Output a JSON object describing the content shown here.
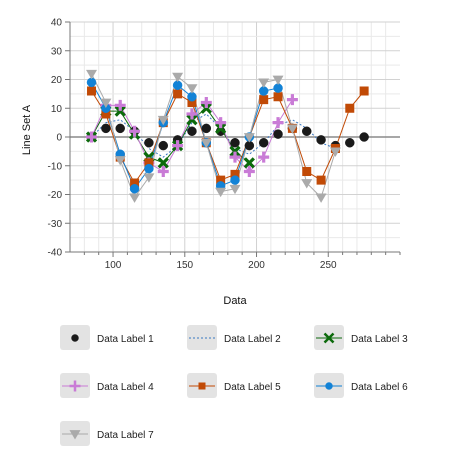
{
  "chart_data": {
    "type": "line",
    "title": "",
    "xlabel": "Data",
    "ylabel": "Line Set A",
    "xlim": [
      70,
      300
    ],
    "ylim": [
      -40,
      40
    ],
    "xticks": [
      100,
      150,
      200,
      250
    ],
    "yticks": [
      -40,
      -30,
      -20,
      -10,
      0,
      10,
      20,
      30,
      40
    ],
    "grid": true,
    "legend_position": "bottom",
    "series": [
      {
        "name": "Data Label 1",
        "color": "#1a1a1a",
        "marker": "circle",
        "line": "none",
        "x": [
          85,
          95,
          105,
          115,
          125,
          135,
          145,
          155,
          165,
          175,
          185,
          195,
          205,
          215,
          225,
          235,
          245,
          255,
          265,
          275
        ],
        "y": [
          0,
          3,
          3,
          2,
          -2,
          -3,
          -1,
          2,
          3,
          2,
          -2,
          -3,
          -2,
          1,
          3,
          2,
          -1,
          -3,
          -2,
          0
        ]
      },
      {
        "name": "Data Label 2",
        "color": "#3a78c2",
        "marker": "none",
        "line": "dotted",
        "x": [
          85,
          95,
          105,
          115,
          125,
          135,
          145,
          155,
          165,
          175,
          185,
          195,
          205,
          215,
          225,
          235,
          245,
          255
        ],
        "y": [
          0,
          5,
          6,
          2,
          -4,
          -7,
          -3,
          5,
          8,
          3,
          -4,
          -6,
          -2,
          4,
          6,
          3,
          -2,
          -4
        ]
      },
      {
        "name": "Data Label 3",
        "color": "#0c6a0c",
        "marker": "x",
        "line": "solid",
        "x": [
          85,
          95,
          105,
          115,
          125,
          135,
          145,
          155,
          165,
          175,
          185,
          195
        ],
        "y": [
          0,
          9,
          9,
          1,
          -7,
          -9,
          -3,
          6,
          10,
          3,
          -5,
          -9
        ]
      },
      {
        "name": "Data Label 4",
        "color": "#c97bd6",
        "marker": "plus",
        "line": "solid",
        "x": [
          85,
          95,
          105,
          115,
          125,
          135,
          145,
          155,
          165,
          175,
          185,
          195,
          205,
          215,
          225
        ],
        "y": [
          0,
          11,
          11,
          2,
          -9,
          -12,
          -3,
          8,
          12,
          5,
          -7,
          -12,
          -7,
          5,
          13
        ]
      },
      {
        "name": "Data Label 5",
        "color": "#c14a06",
        "marker": "square",
        "line": "solid",
        "x": [
          85,
          95,
          105,
          115,
          125,
          135,
          145,
          155,
          165,
          175,
          185,
          205,
          215,
          225,
          235,
          245,
          255,
          265,
          275
        ],
        "y": [
          16,
          8,
          -7,
          -16,
          -9,
          5,
          15,
          12,
          -2,
          -15,
          -13,
          13,
          14,
          3,
          -12,
          -15,
          -4,
          10,
          16
        ]
      },
      {
        "name": "Data Label 6",
        "color": "#1282d6",
        "marker": "circle",
        "line": "solid",
        "x": [
          85,
          95,
          105,
          115,
          125,
          135,
          145,
          155,
          165,
          175,
          185,
          195,
          205,
          215
        ],
        "y": [
          19,
          10,
          -6,
          -18,
          -11,
          5,
          18,
          14,
          -2,
          -17,
          -15,
          0,
          16,
          17
        ]
      },
      {
        "name": "Data Label 7",
        "color": "#aaaaaa",
        "marker": "triangle-down",
        "line": "solid",
        "x": [
          85,
          95,
          105,
          115,
          125,
          135,
          145,
          155,
          165,
          175,
          185,
          195,
          205,
          215,
          225,
          235,
          245,
          255
        ],
        "y": [
          22,
          12,
          -8,
          -21,
          -14,
          6,
          21,
          17,
          -2,
          -19,
          -18,
          0,
          19,
          20,
          3,
          -16,
          -21,
          -5
        ]
      }
    ]
  }
}
